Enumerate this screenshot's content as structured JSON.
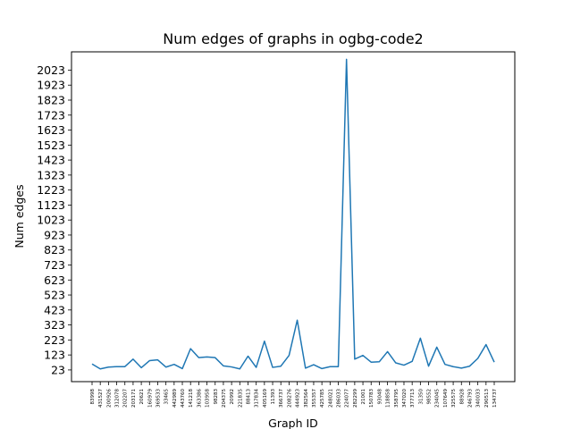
{
  "chart_data": {
    "type": "line",
    "title": "Num edges of graphs in ogbg-code2",
    "xlabel": "Graph ID",
    "ylabel": "Num edges",
    "grid": false,
    "legend": "none",
    "line_color": "#1f77b4",
    "ylim": [
      -55,
      2145
    ],
    "yticks": [
      23,
      123,
      223,
      323,
      423,
      523,
      623,
      723,
      823,
      923,
      1023,
      1123,
      1223,
      1323,
      1423,
      1523,
      1623,
      1723,
      1823,
      1923,
      2023
    ],
    "x": [
      "83998",
      "431527",
      "200926",
      "312078",
      "202207",
      "203171",
      "20621",
      "160979",
      "369533",
      "33465",
      "442989",
      "443760",
      "141218",
      "363386",
      "103958",
      "98283",
      "204375",
      "20992",
      "221835",
      "88413",
      "317834",
      "405169",
      "11393",
      "366737",
      "208276",
      "444923",
      "382564",
      "355357",
      "425785",
      "248021",
      "286033",
      "224077",
      "282299",
      "21001",
      "150783",
      "93048",
      "118858",
      "358795",
      "347020",
      "377713",
      "31350",
      "98552",
      "234045",
      "107649",
      "325575",
      "88928",
      "246793",
      "340033",
      "290513",
      "134737"
    ],
    "values": [
      63,
      30,
      42,
      45,
      45,
      95,
      38,
      85,
      90,
      42,
      60,
      32,
      165,
      105,
      110,
      105,
      50,
      43,
      30,
      115,
      40,
      215,
      40,
      48,
      120,
      355,
      35,
      58,
      32,
      45,
      45,
      2095,
      95,
      120,
      75,
      78,
      145,
      70,
      55,
      80,
      235,
      48,
      175,
      60,
      45,
      35,
      48,
      100,
      192,
      75
    ]
  }
}
